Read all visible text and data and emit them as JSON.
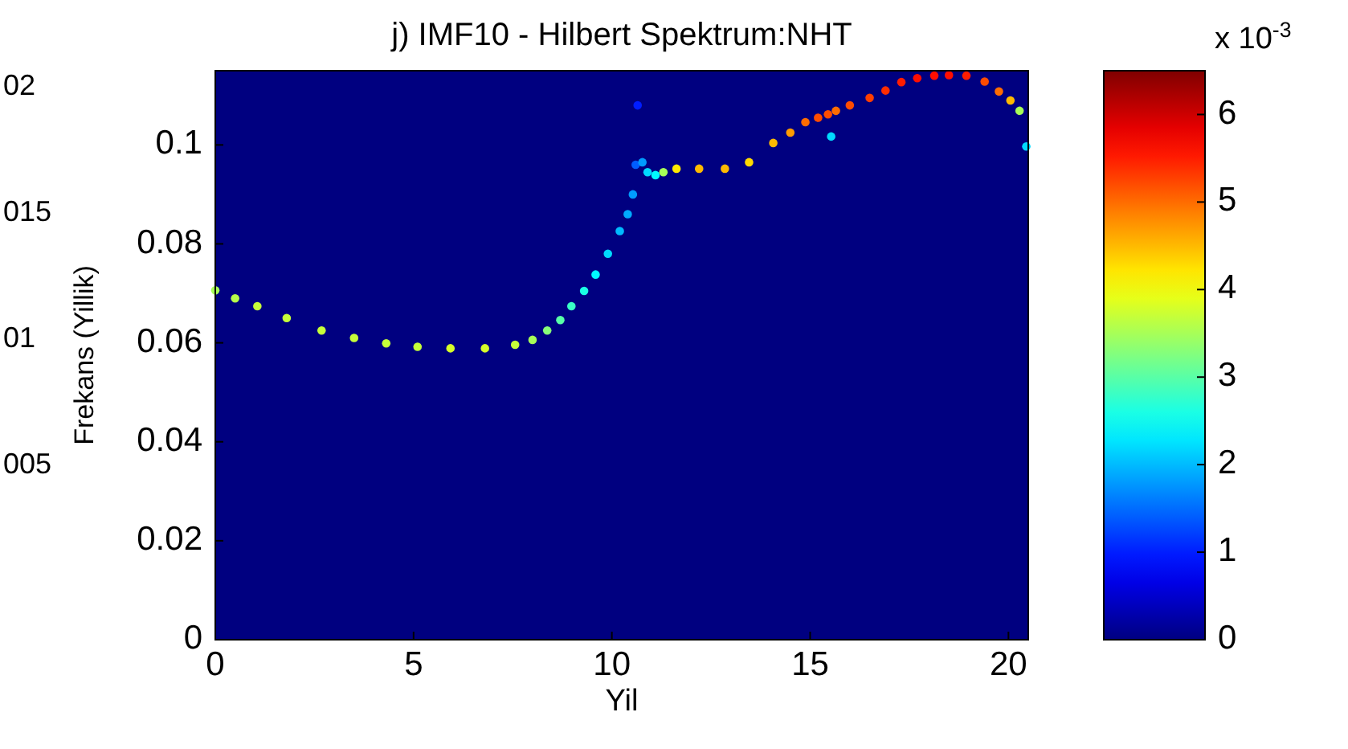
{
  "chart_data": {
    "type": "scatter",
    "title": "j) IMF10 - Hilbert Spektrum:NHT",
    "xlabel": "Yil",
    "ylabel": "Frekans (Yillik)",
    "clabel": "x 10$^{-3}$",
    "annotations": [
      "02",
      "015",
      "01",
      "005"
    ],
    "x": [
      0,
      0.5,
      1.06,
      1.8,
      2.68,
      3.5,
      4.31,
      5.1,
      5.93,
      6.8,
      7.56,
      8.0,
      8.37,
      8.7,
      8.98,
      9.3,
      9.59,
      9.9,
      10.2,
      10.4,
      10.53,
      10.6,
      10.65,
      10.77,
      10.9,
      11.1,
      11.3,
      11.63,
      12.2,
      12.85,
      13.46,
      14.07,
      14.5,
      14.88,
      15.2,
      15.45,
      15.53,
      15.65,
      16.0,
      16.5,
      16.9,
      17.3,
      17.7,
      18.13,
      18.5,
      18.94,
      19.4,
      19.76,
      20.05,
      20.28,
      20.45
    ],
    "values": [
      0.0706,
      0.069,
      0.0674,
      0.065,
      0.0625,
      0.061,
      0.0599,
      0.0592,
      0.0589,
      0.0589,
      0.0596,
      0.0606,
      0.0625,
      0.0646,
      0.0674,
      0.0705,
      0.0738,
      0.078,
      0.0826,
      0.086,
      0.09,
      0.096,
      0.108,
      0.0965,
      0.0945,
      0.0939,
      0.0945,
      0.0952,
      0.0952,
      0.0952,
      0.0965,
      0.1004,
      0.1025,
      0.1046,
      0.1055,
      0.1062,
      0.1017,
      0.1069,
      0.108,
      0.1095,
      0.111,
      0.1127,
      0.1135,
      0.114,
      0.1141,
      0.114,
      0.1128,
      0.1108,
      0.109,
      0.1069,
      0.0997
    ],
    "cvalues": [
      3.5,
      3.6,
      3.7,
      3.7,
      3.7,
      3.7,
      3.7,
      3.7,
      3.8,
      3.8,
      3.7,
      3.5,
      3.3,
      3.0,
      2.8,
      2.6,
      2.4,
      2.2,
      2.0,
      1.9,
      1.8,
      1.4,
      1.0,
      1.8,
      2.2,
      2.4,
      3.5,
      4.2,
      4.5,
      4.5,
      4.3,
      4.5,
      4.7,
      5.0,
      5.2,
      5.2,
      2.2,
      5.0,
      5.2,
      5.3,
      5.4,
      5.5,
      5.6,
      5.6,
      5.6,
      5.5,
      5.2,
      5.0,
      4.5,
      3.5,
      2.2
    ],
    "marker": "circle",
    "xlim": [
      0,
      20.5
    ],
    "xticks": [
      0,
      5,
      10,
      15,
      20
    ],
    "ylim": [
      0,
      0.115
    ],
    "yticks": [
      0,
      0.02,
      0.04,
      0.06,
      0.08,
      0.1
    ],
    "clim": [
      0,
      6.5
    ],
    "cticks": [
      0,
      1,
      2,
      3,
      4,
      5,
      6
    ]
  }
}
